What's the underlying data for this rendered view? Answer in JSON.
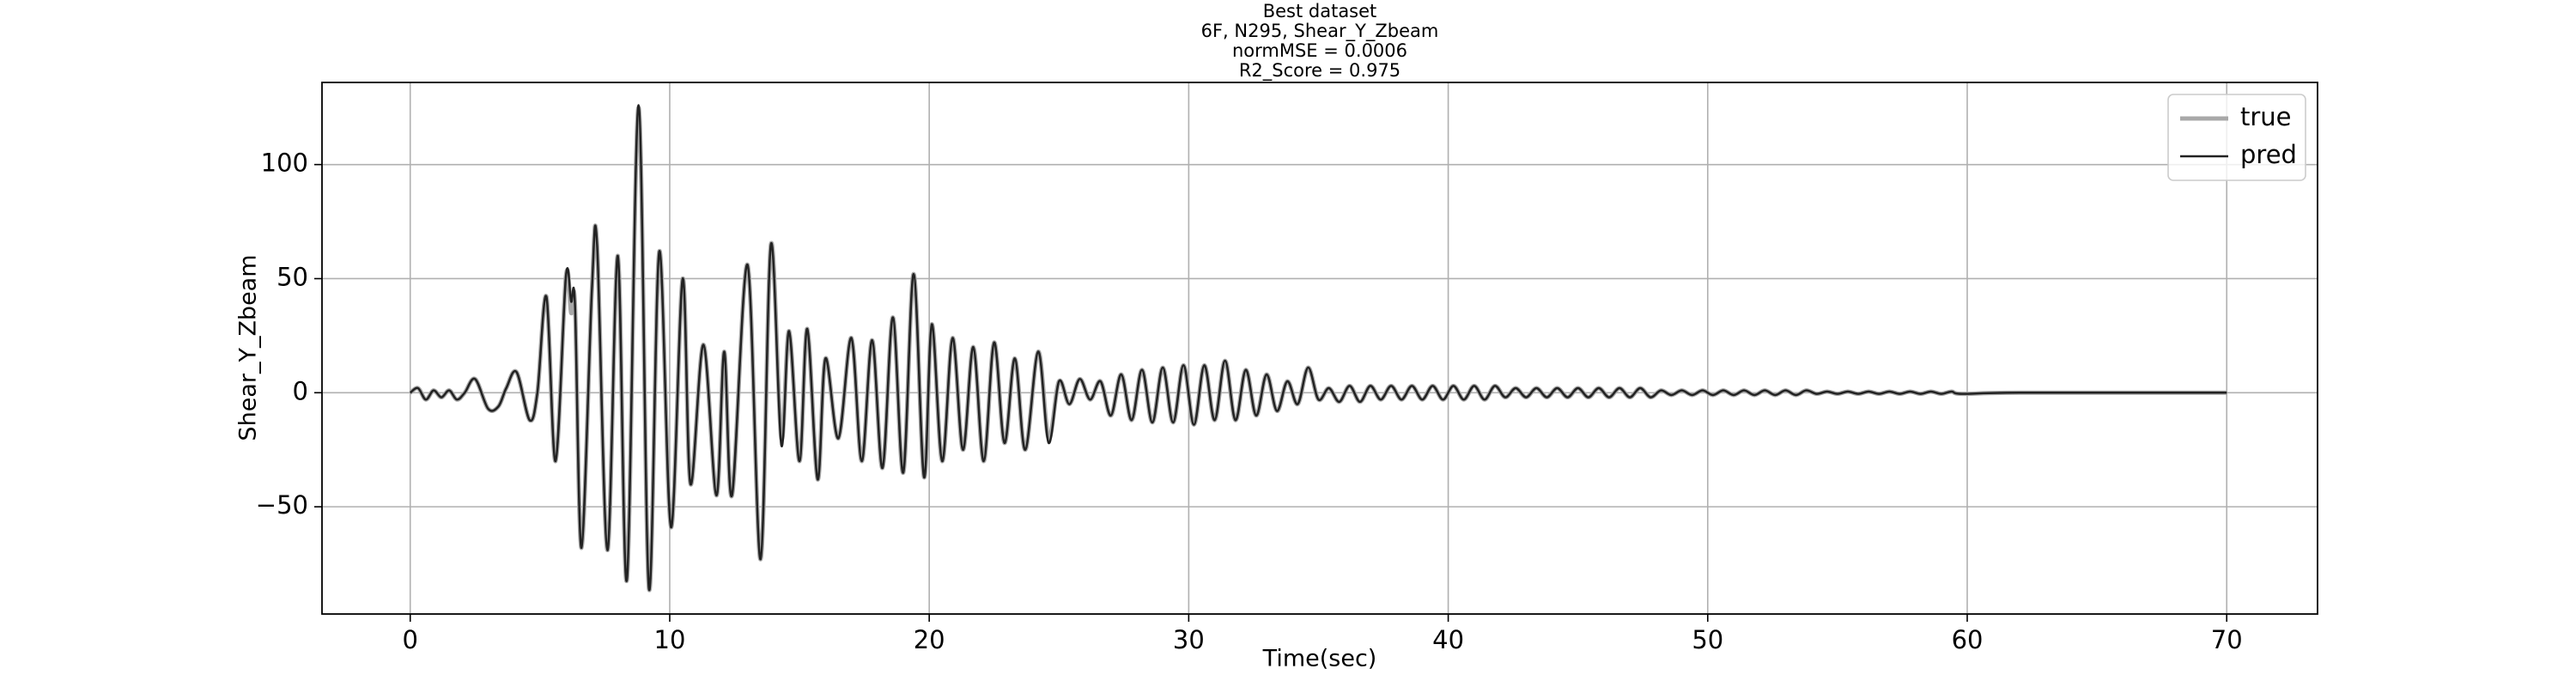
{
  "chart_data": {
    "type": "line",
    "title": [
      "Best dataset",
      "6F, N295, Shear_Y_Zbeam",
      "normMSE = 0.0006",
      "R2_Score = 0.975"
    ],
    "x_label": "Time(sec)",
    "y_label": "Shear_Y_Zbeam",
    "xlim": [
      -3.4,
      73.5
    ],
    "ylim": [
      -97,
      136
    ],
    "xticks": [
      0,
      10,
      20,
      30,
      40,
      50,
      60,
      70
    ],
    "yticks": [
      -50,
      0,
      50,
      100
    ],
    "grid": true,
    "legend": "upper right",
    "x": [
      0,
      0.3,
      0.6,
      0.9,
      1.2,
      1.5,
      1.8,
      2.1,
      2.5,
      3.0,
      3.4,
      3.7,
      4.1,
      4.6,
      4.9,
      5.25,
      5.6,
      6.0,
      6.2,
      6.35,
      6.6,
      7.0,
      7.2,
      7.6,
      8.0,
      8.35,
      8.8,
      9.2,
      9.6,
      10.05,
      10.5,
      10.8,
      11.3,
      11.8,
      12.1,
      12.4,
      13.0,
      13.5,
      13.9,
      14.3,
      14.6,
      15.0,
      15.3,
      15.7,
      16.0,
      16.5,
      17.0,
      17.4,
      17.8,
      18.2,
      18.6,
      19.0,
      19.4,
      19.8,
      20.1,
      20.5,
      20.9,
      21.3,
      21.7,
      22.1,
      22.5,
      22.9,
      23.3,
      23.7,
      24.2,
      24.6,
      25.0,
      25.4,
      25.8,
      26.2,
      26.6,
      27.0,
      27.4,
      27.8,
      28.2,
      28.6,
      29.0,
      29.4,
      29.8,
      30.2,
      30.6,
      31.0,
      31.4,
      31.8,
      32.2,
      32.6,
      33.0,
      33.4,
      33.8,
      34.2,
      34.6,
      35.0,
      35.4,
      35.8,
      36.2,
      36.6,
      37.0,
      37.4,
      37.8,
      38.2,
      38.6,
      39.0,
      39.4,
      39.8,
      40.2,
      40.6,
      41.0,
      41.4,
      41.8,
      42.2,
      42.6,
      43.0,
      43.4,
      43.8,
      44.2,
      44.6,
      45.0,
      45.4,
      45.8,
      46.2,
      46.6,
      47.0,
      47.4,
      47.8,
      48.2,
      48.6,
      49.0,
      49.4,
      49.8,
      50.2,
      50.6,
      51.0,
      51.4,
      51.8,
      52.2,
      52.6,
      53.0,
      53.4,
      53.8,
      54.2,
      54.6,
      55.0,
      55.4,
      55.8,
      56.2,
      56.6,
      57.0,
      57.4,
      57.8,
      58.2,
      58.6,
      59.0,
      59.4,
      59.8,
      62,
      70
    ],
    "series": [
      {
        "name": "true",
        "color": "#a8a8a8",
        "width": 5,
        "values": [
          0,
          2,
          -3,
          1,
          -2,
          1,
          -3,
          0,
          6,
          -7,
          -6,
          2,
          9,
          -12,
          0,
          42,
          -30,
          51,
          35,
          38,
          -68,
          45,
          65,
          -69,
          60,
          -82,
          125,
          -86,
          62,
          -59,
          50,
          -40,
          21,
          -45,
          18,
          -45,
          56,
          -73,
          65,
          -20,
          27,
          -30,
          28,
          -38,
          15,
          -20,
          24,
          -30,
          23,
          -33,
          33,
          -35,
          52,
          -37,
          30,
          -30,
          24,
          -25,
          20,
          -30,
          22,
          -22,
          15,
          -25,
          18,
          -20,
          5,
          -5,
          6,
          -3,
          5,
          -10,
          8,
          -12,
          10,
          -13,
          11,
          -13,
          12,
          -14,
          12,
          -12,
          14,
          -12,
          10,
          -10,
          8,
          -8,
          5,
          -5,
          11,
          -3,
          2,
          -4,
          3,
          -4,
          3,
          -3,
          3,
          -3,
          3,
          -3,
          3,
          -3,
          3,
          -3,
          3,
          -3,
          3,
          -2,
          2,
          -2,
          2,
          -2,
          2,
          -2,
          2,
          -2,
          2,
          -2,
          2,
          -2,
          2,
          -2,
          1,
          -1,
          1,
          -1,
          1,
          -1,
          1,
          -1,
          1,
          -1,
          1,
          -1,
          1,
          -1,
          1,
          -0.5,
          0.5,
          -0.5,
          0.5,
          -0.5,
          0.5,
          -0.5,
          0.5,
          -0.5,
          0.5,
          -0.5,
          0.5,
          -0.5,
          0.5,
          -0.5,
          0,
          0
        ]
      },
      {
        "name": "pred",
        "color": "#222222",
        "width": 2.5,
        "values": [
          0,
          2,
          -3,
          1,
          -2,
          1,
          -3,
          0,
          6,
          -7,
          -6,
          2,
          9,
          -12,
          0,
          42,
          -30,
          51,
          40,
          38,
          -68,
          45,
          65,
          -69,
          60,
          -82,
          126,
          -86,
          62,
          -59,
          50,
          -40,
          21,
          -45,
          18,
          -45,
          56,
          -73,
          65,
          -23,
          27,
          -30,
          28,
          -38,
          15,
          -20,
          24,
          -30,
          23,
          -33,
          33,
          -35,
          52,
          -37,
          30,
          -30,
          24,
          -25,
          20,
          -30,
          22,
          -22,
          15,
          -25,
          18,
          -22,
          5,
          -5,
          6,
          -3,
          5,
          -10,
          8,
          -12,
          10,
          -13,
          11,
          -13,
          12,
          -14,
          12,
          -12,
          14,
          -12,
          10,
          -10,
          8,
          -8,
          5,
          -5,
          11,
          -3,
          2,
          -4,
          3,
          -4,
          3,
          -3,
          3,
          -3,
          3,
          -3,
          3,
          -3,
          3,
          -3,
          3,
          -3,
          3,
          -2,
          2,
          -2,
          2,
          -2,
          2,
          -2,
          2,
          -2,
          2,
          -2,
          2,
          -2,
          2,
          -2,
          1,
          -1,
          1,
          -1,
          1,
          -1,
          1,
          -1,
          1,
          -1,
          1,
          -1,
          1,
          -1,
          1,
          -0.5,
          0.5,
          -0.5,
          0.5,
          -0.5,
          0.5,
          -0.5,
          0.5,
          -0.5,
          0.5,
          -0.5,
          0.5,
          -0.5,
          0.5,
          -0.5,
          0,
          0
        ]
      }
    ]
  }
}
